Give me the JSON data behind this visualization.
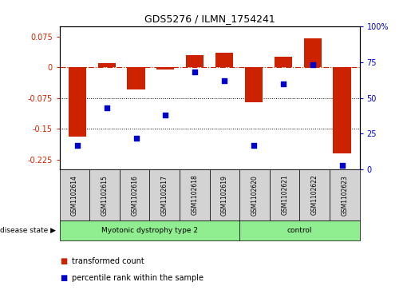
{
  "title": "GDS5276 / ILMN_1754241",
  "samples": [
    "GSM1102614",
    "GSM1102615",
    "GSM1102616",
    "GSM1102617",
    "GSM1102618",
    "GSM1102619",
    "GSM1102620",
    "GSM1102621",
    "GSM1102622",
    "GSM1102623"
  ],
  "bar_values": [
    -0.17,
    0.01,
    -0.055,
    -0.005,
    0.03,
    0.035,
    -0.085,
    0.025,
    0.07,
    -0.21
  ],
  "percentile_values": [
    17,
    43,
    22,
    38,
    68,
    62,
    17,
    60,
    73,
    3
  ],
  "bar_color": "#cc2200",
  "dot_color": "#0000cc",
  "ylim_left": [
    -0.25,
    0.1
  ],
  "ylim_right": [
    0,
    100
  ],
  "yticks_left": [
    0.075,
    0,
    -0.075,
    -0.15,
    -0.225
  ],
  "yticks_right": [
    100,
    75,
    50,
    25,
    0
  ],
  "group1_label": "Myotonic dystrophy type 2",
  "group2_label": "control",
  "group1_count": 6,
  "group2_count": 4,
  "group_color": "#90ee90",
  "disease_label": "disease state",
  "legend_bar_label": "transformed count",
  "legend_dot_label": "percentile rank within the sample",
  "bg_color": "#ffffff",
  "cell_color": "#d3d3d3",
  "hline_red_color": "#cc2200",
  "hline_black_color": "#000000",
  "bar_width": 0.6
}
